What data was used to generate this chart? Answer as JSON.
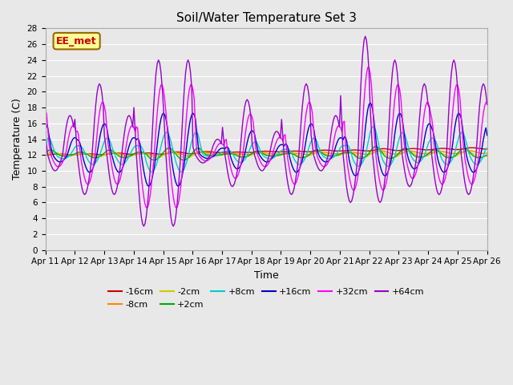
{
  "title": "Soil/Water Temperature Set 3",
  "xlabel": "Time",
  "ylabel": "Temperature (C)",
  "annotation": "EE_met",
  "annotation_color": "#cc0000",
  "annotation_bg": "#ffff99",
  "annotation_border": "#996600",
  "ylim": [
    0,
    28
  ],
  "yticks": [
    0,
    2,
    4,
    6,
    8,
    10,
    12,
    14,
    16,
    18,
    20,
    22,
    24,
    26,
    28
  ],
  "xtick_labels": [
    "Apr 11",
    "Apr 12",
    "Apr 13",
    "Apr 14",
    "Apr 15",
    "Apr 16",
    "Apr 17",
    "Apr 18",
    "Apr 19",
    "Apr 20",
    "Apr 21",
    "Apr 22",
    "Apr 23",
    "Apr 24",
    "Apr 25",
    "Apr 26"
  ],
  "series_colors": {
    "-16cm": "#cc0000",
    "-8cm": "#ff8800",
    "-2cm": "#cccc00",
    "+2cm": "#00aa00",
    "+8cm": "#00cccc",
    "+16cm": "#0000cc",
    "+32cm": "#ff00ff",
    "+64cm": "#9900cc"
  },
  "background_color": "#e8e8e8",
  "grid_color": "#ffffff"
}
